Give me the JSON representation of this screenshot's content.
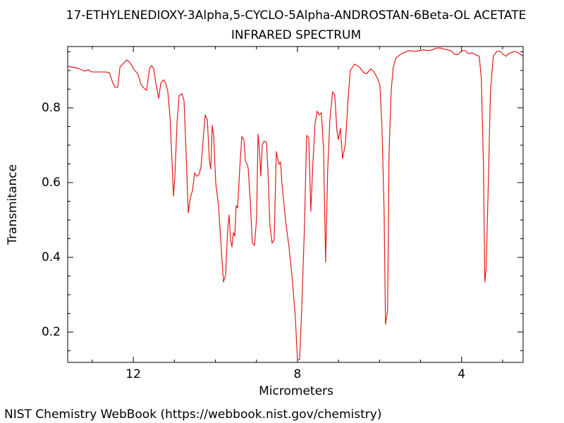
{
  "chart_data": {
    "type": "line",
    "title": "17-ETHYLENEDIOXY-3Alpha,5-CYCLO-5Alpha-ANDROSTAN-6Beta-OL ACETATE",
    "subtitle": "INFRARED SPECTRUM",
    "x_label": "Micrometers",
    "y_label": "Transmitance",
    "source": "NIST Chemistry WebBook (https://webbook.nist.gov/chemistry)",
    "color": "#e41a1c",
    "grid": false,
    "xlim": [
      13.6,
      2.5
    ],
    "ylim": [
      0.119,
      0.964
    ],
    "xticks": [
      12,
      8,
      4
    ],
    "yticks": [
      0.2,
      0.4,
      0.6,
      0.8
    ],
    "xminorticks": [
      13,
      11,
      10,
      9,
      7,
      6,
      5,
      3
    ],
    "yminorticks": [
      0.15,
      0.25,
      0.3,
      0.35,
      0.45,
      0.5,
      0.55,
      0.65,
      0.7,
      0.75,
      0.85,
      0.9,
      0.95
    ],
    "x": [
      13.597,
      13.356,
      13.185,
      13.099,
      13.013,
      12.67,
      12.584,
      12.498,
      12.446,
      12.378,
      12.326,
      12.24,
      12.155,
      12.069,
      11.983,
      11.897,
      11.811,
      11.725,
      11.674,
      11.605,
      11.554,
      11.502,
      11.451,
      11.382,
      11.33,
      11.262,
      11.21,
      11.159,
      11.107,
      11.056,
      11.021,
      10.987,
      10.936,
      10.884,
      10.815,
      10.764,
      10.712,
      10.661,
      10.609,
      10.558,
      10.506,
      10.455,
      10.403,
      10.352,
      10.3,
      10.249,
      10.197,
      10.146,
      10.112,
      10.077,
      10.043,
      9.991,
      9.923,
      9.871,
      9.803,
      9.751,
      9.7,
      9.665,
      9.631,
      9.597,
      9.562,
      9.528,
      9.494,
      9.459,
      9.408,
      9.356,
      9.305,
      9.27,
      9.236,
      9.202,
      9.15,
      9.099,
      9.047,
      8.996,
      8.961,
      8.927,
      8.893,
      8.858,
      8.807,
      8.755,
      8.721,
      8.67,
      8.618,
      8.567,
      8.515,
      8.481,
      8.446,
      8.412,
      8.378,
      8.292,
      8.206,
      8.12,
      8.052,
      8.0,
      7.948,
      7.897,
      7.828,
      7.777,
      7.725,
      7.674,
      7.622,
      7.571,
      7.519,
      7.468,
      7.416,
      7.365,
      7.313,
      7.262,
      7.21,
      7.142,
      7.09,
      7.039,
      7.004,
      6.953,
      6.901,
      6.833,
      6.764,
      6.712,
      6.609,
      6.489,
      6.386,
      6.318,
      6.215,
      6.146,
      6.06,
      5.991,
      5.94,
      5.888,
      5.854,
      5.803,
      5.768,
      5.717,
      5.665,
      5.597,
      5.459,
      5.288,
      5.116,
      4.944,
      4.773,
      4.601,
      4.515,
      4.429,
      4.258,
      4.172,
      4.086,
      4.0,
      3.914,
      3.828,
      3.742,
      3.657,
      3.571,
      3.519,
      3.468,
      3.433,
      3.4,
      3.348,
      3.296,
      3.227,
      3.142,
      3.056,
      2.987,
      2.918,
      2.85,
      2.712,
      2.609,
      2.506
    ],
    "values": [
      0.911,
      0.906,
      0.898,
      0.902,
      0.896,
      0.896,
      0.894,
      0.866,
      0.855,
      0.855,
      0.909,
      0.919,
      0.928,
      0.919,
      0.902,
      0.892,
      0.862,
      0.851,
      0.847,
      0.906,
      0.913,
      0.904,
      0.866,
      0.825,
      0.866,
      0.875,
      0.866,
      0.843,
      0.777,
      0.655,
      0.564,
      0.617,
      0.758,
      0.832,
      0.838,
      0.819,
      0.674,
      0.519,
      0.56,
      0.579,
      0.626,
      0.617,
      0.621,
      0.64,
      0.711,
      0.781,
      0.768,
      0.658,
      0.636,
      0.753,
      0.726,
      0.598,
      0.538,
      0.447,
      0.334,
      0.353,
      0.475,
      0.513,
      0.447,
      0.428,
      0.466,
      0.457,
      0.538,
      0.532,
      0.636,
      0.723,
      0.715,
      0.658,
      0.651,
      0.64,
      0.551,
      0.438,
      0.432,
      0.504,
      0.73,
      0.689,
      0.617,
      0.702,
      0.711,
      0.708,
      0.636,
      0.485,
      0.438,
      0.447,
      0.683,
      0.664,
      0.649,
      0.655,
      0.598,
      0.5,
      0.428,
      0.334,
      0.24,
      0.126,
      0.126,
      0.258,
      0.485,
      0.726,
      0.721,
      0.523,
      0.655,
      0.758,
      0.791,
      0.781,
      0.787,
      0.692,
      0.387,
      0.636,
      0.768,
      0.843,
      0.834,
      0.74,
      0.715,
      0.745,
      0.664,
      0.702,
      0.825,
      0.9,
      0.917,
      0.909,
      0.894,
      0.891,
      0.904,
      0.898,
      0.881,
      0.862,
      0.749,
      0.523,
      0.221,
      0.258,
      0.674,
      0.843,
      0.909,
      0.934,
      0.945,
      0.953,
      0.951,
      0.955,
      0.953,
      0.96,
      0.96,
      0.957,
      0.953,
      0.943,
      0.942,
      0.953,
      0.953,
      0.945,
      0.947,
      0.942,
      0.938,
      0.881,
      0.655,
      0.334,
      0.372,
      0.598,
      0.843,
      0.938,
      0.951,
      0.951,
      0.943,
      0.938,
      0.945,
      0.951,
      0.947,
      0.938
    ]
  }
}
